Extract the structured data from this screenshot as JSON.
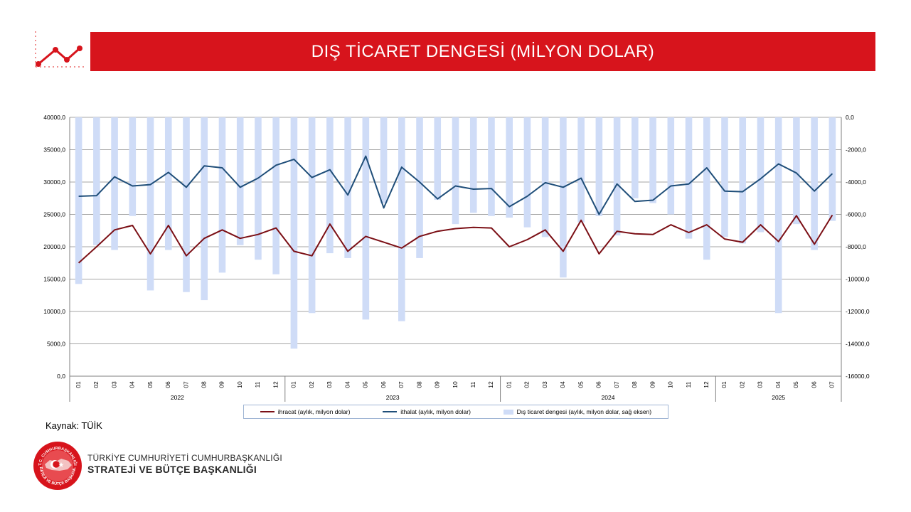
{
  "header": {
    "title": "DIŞ TİCARET DENGESİ (MİLYON DOLAR)"
  },
  "source": {
    "label": "Kaynak: TÜİK"
  },
  "footer": {
    "line1": "TÜRKİYE CUMHURİYETİ CUMHURBAŞKANLIĞI",
    "line2": "STRATEJİ VE BÜTÇE BAŞKANLIĞI",
    "emblem_top_text": "T.C. CUMHURBAŞKANLIĞI",
    "emblem_bottom_text": "STRATEJİ VE BÜTÇE BAŞKANLIĞI"
  },
  "colors": {
    "brand_red": "#d7141c",
    "export_line": "#7b0f15",
    "import_line": "#1f4e79",
    "balance_bar": "#cfdcf7",
    "grid": "#a6a6a6"
  },
  "chart_data": {
    "type": "line+bar",
    "title": "",
    "ylabel_left": "",
    "ylabel_right": "",
    "left_axis": {
      "min": 0,
      "max": 40000,
      "step": 5000,
      "tick_labels": [
        "0,0",
        "5000,0",
        "10000,0",
        "15000,0",
        "20000,0",
        "25000,0",
        "30000,0",
        "35000,0",
        "40000,0"
      ]
    },
    "right_axis": {
      "min": -16000,
      "max": 0,
      "step": 2000,
      "tick_labels": [
        "-16000,0",
        "-14000,0",
        "-12000,0",
        "-10000,0",
        "-8000,0",
        "-6000,0",
        "-4000,0",
        "-2000,0",
        "0,0"
      ]
    },
    "grid": true,
    "legend_position": "bottom",
    "years": [
      {
        "label": "2022",
        "months": [
          "01",
          "02",
          "03",
          "04",
          "05",
          "06",
          "07",
          "08",
          "09",
          "10",
          "11",
          "12"
        ]
      },
      {
        "label": "2023",
        "months": [
          "01",
          "02",
          "03",
          "04",
          "05",
          "06",
          "07",
          "08",
          "09",
          "10",
          "11",
          "12"
        ]
      },
      {
        "label": "2024",
        "months": [
          "01",
          "02",
          "03",
          "04",
          "05",
          "06",
          "07",
          "08",
          "09",
          "10",
          "11",
          "12"
        ]
      },
      {
        "label": "2025",
        "months": [
          "01",
          "02",
          "03",
          "04",
          "05",
          "06",
          "07"
        ]
      }
    ],
    "series": [
      {
        "name": "ihracat (aylık, milyon dolar)",
        "type": "line",
        "axis": "left",
        "values": [
          17500,
          20000,
          22600,
          23300,
          18900,
          23300,
          18600,
          21300,
          22600,
          21300,
          21900,
          22900,
          19300,
          18600,
          23500,
          19300,
          21600,
          20700,
          19800,
          21600,
          22400,
          22800,
          23000,
          22900,
          20000,
          21100,
          22600,
          19300,
          24100,
          18900,
          22400,
          22000,
          21900,
          23400,
          22200,
          23400,
          21200,
          20700,
          23400,
          20800,
          24800,
          20400,
          24900
        ]
      },
      {
        "name": "ithalat (aylık, milyon dolar)",
        "type": "line",
        "axis": "left",
        "values": [
          27800,
          27900,
          30800,
          29400,
          29600,
          31500,
          29200,
          32500,
          32200,
          29200,
          30600,
          32600,
          33500,
          30700,
          31900,
          28000,
          34000,
          26000,
          32300,
          30000,
          27400,
          29400,
          28900,
          29000,
          26200,
          27800,
          29900,
          29200,
          30600,
          25000,
          29700,
          27000,
          27200,
          29400,
          29700,
          32200,
          28600,
          28500,
          30500,
          32800,
          31400,
          28600,
          31300
        ]
      },
      {
        "name": "Dış ticaret dengesi (aylık, milyon dolar, sağ eksen)",
        "type": "bar",
        "axis": "right",
        "values": [
          -10300,
          -7900,
          -8200,
          -6100,
          -10700,
          -8200,
          -10800,
          -11300,
          -9600,
          -7900,
          -8800,
          -9700,
          -14300,
          -12100,
          -8400,
          -8700,
          -12500,
          -5300,
          -12600,
          -8700,
          -5100,
          -6600,
          -5900,
          -6100,
          -6200,
          -6800,
          -7400,
          -9900,
          -6500,
          -6100,
          -7300,
          -5000,
          -5300,
          -6000,
          -7500,
          -8800,
          -7400,
          -7800,
          -7100,
          -12100,
          -6600,
          -8200,
          -6400
        ]
      }
    ]
  }
}
